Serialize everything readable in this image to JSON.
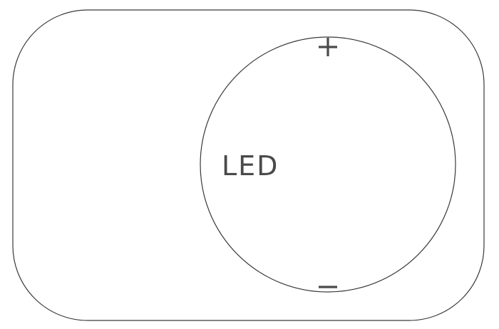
{
  "diagram": {
    "component_label": "LED",
    "positive_terminal_symbol": "+",
    "negative_terminal_symbol": "−",
    "stroke_color": "#3a3a3a",
    "text_color": "#4a4a4a",
    "background_color": "#ffffff"
  }
}
